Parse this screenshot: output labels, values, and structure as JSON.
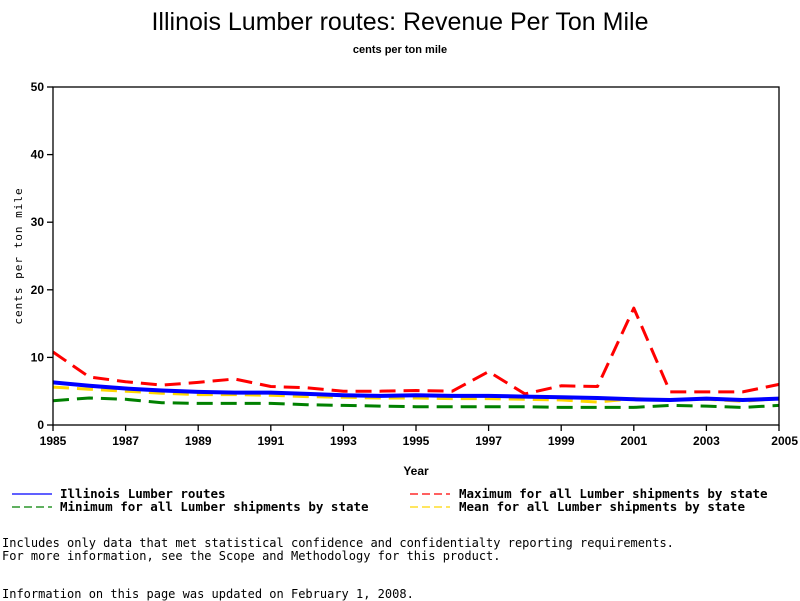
{
  "chart_data": {
    "type": "line",
    "title": "Illinois Lumber routes: Revenue Per Ton Mile",
    "subtitle": "cents per ton mile",
    "xlabel": "Year",
    "ylabel": "cents per ton mile",
    "xlim": [
      1985,
      2005
    ],
    "ylim": [
      0,
      50
    ],
    "x_ticks": [
      "1985",
      "1987",
      "1989",
      "1991",
      "1993",
      "1995",
      "1997",
      "1999",
      "2001",
      "2003",
      "2005"
    ],
    "y_ticks": [
      "0",
      "10",
      "20",
      "30",
      "40",
      "50"
    ],
    "grid": false,
    "legend_position": "bottom",
    "x": [
      1985,
      1986,
      1987,
      1988,
      1989,
      1990,
      1991,
      1992,
      1993,
      1994,
      1995,
      1996,
      1997,
      1998,
      1999,
      2000,
      2001,
      2002,
      2003,
      2004,
      2005
    ],
    "series": [
      {
        "name": "Illinois Lumber routes",
        "color": "#0000ff",
        "style": "solid",
        "values": [
          6.3,
          5.8,
          5.4,
          5.1,
          4.9,
          4.8,
          4.8,
          4.6,
          4.4,
          4.3,
          4.4,
          4.3,
          4.3,
          4.2,
          4.1,
          4.0,
          3.8,
          3.7,
          3.9,
          3.7,
          3.9
        ]
      },
      {
        "name": "Maximum for all Lumber shipments by state",
        "color": "#ff0000",
        "style": "dashed",
        "values": [
          10.8,
          7.1,
          6.4,
          5.9,
          6.3,
          6.8,
          5.7,
          5.5,
          5.0,
          5.0,
          5.1,
          5.0,
          7.9,
          4.6,
          5.8,
          5.7,
          17.3,
          4.9,
          4.9,
          4.9,
          6.0
        ]
      },
      {
        "name": "Minimum for all Lumber shipments by state",
        "color": "#008000",
        "style": "dashed",
        "values": [
          3.6,
          4.0,
          3.8,
          3.3,
          3.2,
          3.2,
          3.2,
          3.0,
          2.9,
          2.8,
          2.7,
          2.7,
          2.7,
          2.7,
          2.6,
          2.6,
          2.6,
          2.9,
          2.8,
          2.6,
          2.9
        ]
      },
      {
        "name": "Mean for all Lumber shipments by state",
        "color": "#ffd700",
        "style": "dashed",
        "values": [
          5.6,
          5.3,
          5.0,
          4.7,
          4.5,
          4.5,
          4.4,
          4.2,
          4.1,
          4.0,
          4.0,
          3.9,
          3.9,
          3.8,
          3.7,
          3.4,
          3.9,
          3.7,
          3.8,
          3.5,
          3.9
        ]
      }
    ]
  },
  "footer": {
    "note_line1": "Includes only data that met statistical confidence and confidentialty reporting requirements.",
    "note_line2": "For more information, see the Scope and Methodology for this product.",
    "updated": "Information on this page was updated on February 1, 2008."
  }
}
